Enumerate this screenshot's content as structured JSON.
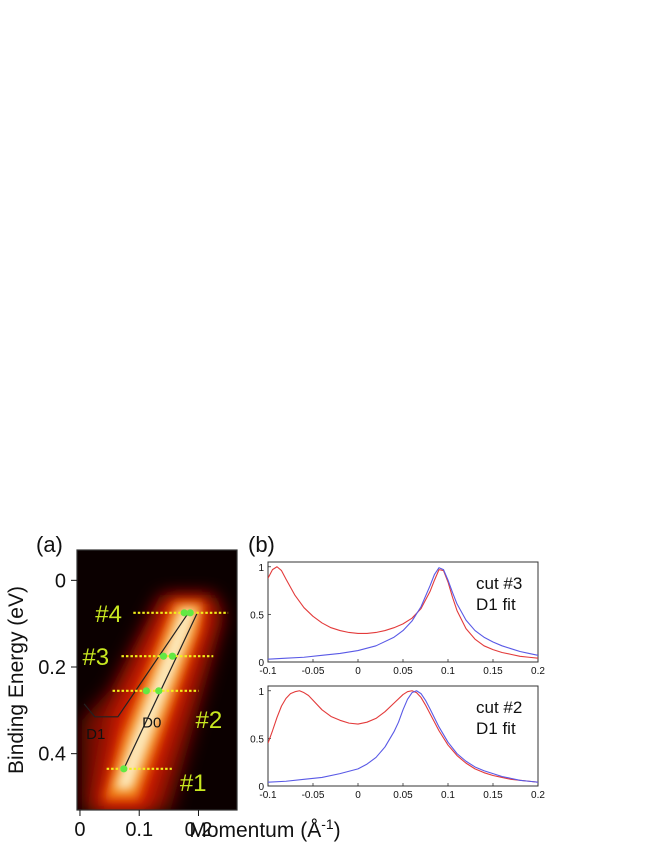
{
  "chart_data": [
    {
      "panel_label": "(a)",
      "type": "heatmap",
      "xlabel_main": "Momentum (",
      "xlabel_unit": "Å",
      "xlabel_exp": "-1",
      "xlabel_close": ")",
      "ylabel": "Binding Energy (eV)",
      "xlim": [
        -0.005,
        0.265
      ],
      "ylim": [
        -0.07,
        0.53
      ],
      "y_inverted": true,
      "x_ticks": [
        0,
        0.1,
        0.2
      ],
      "x_tick_labels": [
        "0",
        "0.1",
        "0.2"
      ],
      "y_ticks": [
        0,
        0.2,
        0.4
      ],
      "y_tick_labels": [
        "0",
        "0.2",
        "0.4"
      ],
      "colormap": "hot",
      "cuts": [
        {
          "label": "#4",
          "energy": 0.075,
          "x_range": [
            0.09,
            0.25
          ],
          "points": [
            0.176,
            0.186
          ]
        },
        {
          "label": "#3",
          "energy": 0.175,
          "x_range": [
            0.07,
            0.225
          ],
          "points": [
            0.141,
            0.156
          ]
        },
        {
          "label": "#2",
          "energy": 0.255,
          "x_range": [
            0.055,
            0.2
          ],
          "points": [
            0.112,
            0.133
          ]
        },
        {
          "label": "#1",
          "energy": 0.435,
          "x_range": [
            0.045,
            0.155
          ],
          "points": [
            0.074
          ]
        }
      ],
      "dispersions": [
        {
          "name": "D1",
          "x": [
            0.007,
            0.025,
            0.064,
            0.183
          ],
          "y": [
            0.285,
            0.315,
            0.315,
            0.075
          ]
        },
        {
          "name": "D0",
          "x": [
            0.074,
            0.198
          ],
          "y": [
            0.435,
            0.075
          ]
        }
      ],
      "colors": {
        "cut_line": "#f2ef1a",
        "cut_point": "#63e843",
        "cut_label": "#c9e820",
        "dispersion": "#222222"
      }
    },
    {
      "panel_label": "(b)",
      "type": "line",
      "title_line1": "cut #3",
      "title_line2": "D1 fit",
      "xlim": [
        -0.1,
        0.2
      ],
      "ylim": [
        0,
        1.05
      ],
      "x_ticks": [
        -0.1,
        -0.05,
        0,
        0.05,
        0.1,
        0.15,
        0.2
      ],
      "x_tick_labels": [
        "-0.1",
        "-0.05",
        "0",
        "0.05",
        "0.1",
        "0.15",
        "0.2"
      ],
      "y_ticks": [
        0,
        0.5,
        1
      ],
      "y_tick_labels": [
        "0",
        "0.5",
        "1"
      ],
      "series": [
        {
          "color": "#e33b3b",
          "x": [
            -0.1,
            -0.095,
            -0.09,
            -0.085,
            -0.08,
            -0.07,
            -0.06,
            -0.05,
            -0.04,
            -0.03,
            -0.02,
            -0.01,
            0,
            0.01,
            0.02,
            0.03,
            0.04,
            0.05,
            0.06,
            0.07,
            0.08,
            0.085,
            0.09,
            0.095,
            0.1,
            0.105,
            0.11,
            0.12,
            0.13,
            0.14,
            0.15,
            0.16,
            0.17,
            0.18,
            0.19,
            0.2
          ],
          "y": [
            0.88,
            0.97,
            1.0,
            0.96,
            0.87,
            0.7,
            0.57,
            0.48,
            0.41,
            0.36,
            0.33,
            0.31,
            0.3,
            0.3,
            0.31,
            0.33,
            0.36,
            0.4,
            0.46,
            0.56,
            0.74,
            0.86,
            0.97,
            0.96,
            0.84,
            0.68,
            0.54,
            0.35,
            0.24,
            0.17,
            0.13,
            0.1,
            0.08,
            0.06,
            0.05,
            0.04
          ]
        },
        {
          "color": "#5959e6",
          "x": [
            -0.1,
            -0.08,
            -0.06,
            -0.04,
            -0.02,
            0,
            0.02,
            0.04,
            0.05,
            0.06,
            0.07,
            0.08,
            0.085,
            0.09,
            0.095,
            0.1,
            0.105,
            0.11,
            0.12,
            0.13,
            0.14,
            0.15,
            0.16,
            0.17,
            0.18,
            0.19,
            0.2
          ],
          "y": [
            0.03,
            0.04,
            0.05,
            0.07,
            0.09,
            0.12,
            0.17,
            0.26,
            0.33,
            0.43,
            0.58,
            0.8,
            0.92,
            0.99,
            0.97,
            0.86,
            0.73,
            0.61,
            0.44,
            0.33,
            0.26,
            0.21,
            0.17,
            0.14,
            0.11,
            0.09,
            0.07
          ]
        }
      ]
    },
    {
      "panel_label": "",
      "type": "line",
      "title_line1": "cut #2",
      "title_line2": "D1 fit",
      "xlim": [
        -0.1,
        0.2
      ],
      "ylim": [
        0,
        1.05
      ],
      "x_ticks": [
        -0.1,
        -0.05,
        0,
        0.05,
        0.1,
        0.15,
        0.2
      ],
      "x_tick_labels": [
        "-0.1",
        "-0.05",
        "0",
        "0.05",
        "0.1",
        "0.15",
        "0.2"
      ],
      "y_ticks": [
        0,
        0.5,
        1
      ],
      "y_tick_labels": [
        "0",
        "0.5",
        "1"
      ],
      "series": [
        {
          "color": "#e33b3b",
          "x": [
            -0.1,
            -0.095,
            -0.09,
            -0.085,
            -0.08,
            -0.075,
            -0.07,
            -0.065,
            -0.06,
            -0.055,
            -0.05,
            -0.04,
            -0.03,
            -0.02,
            -0.01,
            0,
            0.01,
            0.02,
            0.03,
            0.04,
            0.05,
            0.055,
            0.06,
            0.065,
            0.07,
            0.075,
            0.08,
            0.09,
            0.1,
            0.11,
            0.12,
            0.13,
            0.14,
            0.15,
            0.16,
            0.17,
            0.18,
            0.19,
            0.2
          ],
          "y": [
            0.45,
            0.58,
            0.72,
            0.84,
            0.92,
            0.97,
            0.99,
            1.0,
            0.98,
            0.95,
            0.9,
            0.8,
            0.73,
            0.69,
            0.66,
            0.65,
            0.67,
            0.71,
            0.78,
            0.87,
            0.96,
            0.99,
            1.0,
            0.98,
            0.93,
            0.85,
            0.76,
            0.58,
            0.43,
            0.32,
            0.24,
            0.18,
            0.14,
            0.11,
            0.09,
            0.07,
            0.06,
            0.05,
            0.04
          ]
        },
        {
          "color": "#5959e6",
          "x": [
            -0.1,
            -0.08,
            -0.06,
            -0.04,
            -0.02,
            0,
            0.01,
            0.02,
            0.03,
            0.04,
            0.045,
            0.05,
            0.055,
            0.06,
            0.065,
            0.07,
            0.075,
            0.08,
            0.09,
            0.1,
            0.11,
            0.12,
            0.13,
            0.14,
            0.15,
            0.16,
            0.17,
            0.18,
            0.19,
            0.2
          ],
          "y": [
            0.04,
            0.05,
            0.07,
            0.09,
            0.13,
            0.18,
            0.23,
            0.3,
            0.41,
            0.57,
            0.67,
            0.8,
            0.91,
            0.98,
            1.0,
            0.97,
            0.9,
            0.81,
            0.62,
            0.46,
            0.34,
            0.26,
            0.2,
            0.16,
            0.13,
            0.1,
            0.08,
            0.06,
            0.05,
            0.04
          ]
        }
      ]
    }
  ]
}
